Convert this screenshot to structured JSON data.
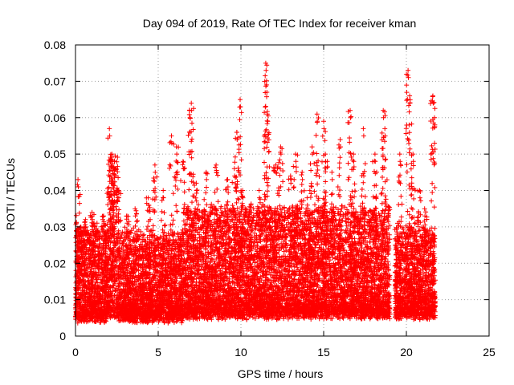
{
  "chart_data": {
    "type": "scatter",
    "title": "Day 094 of 2019, Rate Of TEC Index for receiver kman",
    "xlabel": "GPS time / hours",
    "ylabel": "ROTI / TECUs",
    "xlim": [
      0,
      25
    ],
    "ylim": [
      0,
      0.08
    ],
    "x_ticks": [
      0,
      5,
      10,
      15,
      20,
      25
    ],
    "x_tick_labels": [
      "0",
      "5",
      "10",
      "15",
      "20",
      "25"
    ],
    "y_ticks": [
      0,
      0.01,
      0.02,
      0.03,
      0.04,
      0.05,
      0.06,
      0.07,
      0.08
    ],
    "y_tick_labels": [
      "0",
      "0.01",
      "0.02",
      "0.03",
      "0.04",
      "0.05",
      "0.06",
      "0.07",
      "0.08"
    ],
    "grid": true,
    "marker": "+",
    "series": [
      {
        "name": "ROTI",
        "color": "#ff0000",
        "marker": "plus",
        "data_gap_hours": [
          19.0,
          19.3
        ],
        "data_end_hour": 21.75,
        "bands": [
          {
            "x": [
              0.0,
              2.0
            ],
            "base_range": [
              0.005,
              0.03
            ]
          },
          {
            "x": [
              2.0,
              2.6
            ],
            "base_range": [
              0.006,
              0.05
            ]
          },
          {
            "x": [
              2.6,
              6.5
            ],
            "base_range": [
              0.005,
              0.028
            ]
          },
          {
            "x": [
              6.5,
              10.5
            ],
            "base_range": [
              0.006,
              0.035
            ]
          },
          {
            "x": [
              10.5,
              19.0
            ],
            "base_range": [
              0.006,
              0.035
            ]
          },
          {
            "x": [
              19.3,
              21.75
            ],
            "base_range": [
              0.006,
              0.03
            ]
          }
        ],
        "peaks": [
          [
            0.05,
            0.031
          ],
          [
            0.15,
            0.043
          ],
          [
            0.3,
            0.03
          ],
          [
            0.6,
            0.032
          ],
          [
            1.0,
            0.034
          ],
          [
            1.3,
            0.031
          ],
          [
            1.7,
            0.033
          ],
          [
            2.05,
            0.057
          ],
          [
            2.2,
            0.05
          ],
          [
            2.35,
            0.048
          ],
          [
            2.6,
            0.04
          ],
          [
            3.1,
            0.033
          ],
          [
            3.6,
            0.035
          ],
          [
            4.4,
            0.038
          ],
          [
            4.8,
            0.047
          ],
          [
            5.3,
            0.04
          ],
          [
            5.8,
            0.055
          ],
          [
            6.1,
            0.052
          ],
          [
            6.5,
            0.048
          ],
          [
            6.9,
            0.062
          ],
          [
            7.0,
            0.064
          ],
          [
            7.3,
            0.042
          ],
          [
            7.9,
            0.045
          ],
          [
            8.5,
            0.047
          ],
          [
            9.2,
            0.043
          ],
          [
            9.6,
            0.046
          ],
          [
            9.75,
            0.056
          ],
          [
            9.95,
            0.065
          ],
          [
            10.1,
            0.04
          ],
          [
            10.6,
            0.036
          ],
          [
            11.1,
            0.04
          ],
          [
            11.5,
            0.075
          ],
          [
            11.55,
            0.069
          ],
          [
            11.6,
            0.061
          ],
          [
            12.1,
            0.047
          ],
          [
            12.4,
            0.052
          ],
          [
            13.0,
            0.044
          ],
          [
            13.3,
            0.05
          ],
          [
            13.7,
            0.045
          ],
          [
            14.0,
            0.038
          ],
          [
            14.3,
            0.052
          ],
          [
            14.6,
            0.061
          ],
          [
            15.0,
            0.059
          ],
          [
            15.1,
            0.05
          ],
          [
            15.5,
            0.045
          ],
          [
            16.0,
            0.054
          ],
          [
            16.6,
            0.062
          ],
          [
            16.8,
            0.05
          ],
          [
            17.4,
            0.057
          ],
          [
            18.1,
            0.05
          ],
          [
            18.6,
            0.062
          ],
          [
            18.7,
            0.057
          ],
          [
            19.6,
            0.05
          ],
          [
            20.1,
            0.073
          ],
          [
            20.2,
            0.066
          ],
          [
            20.4,
            0.05
          ],
          [
            20.8,
            0.04
          ],
          [
            21.1,
            0.035
          ],
          [
            21.6,
            0.066
          ],
          [
            21.7,
            0.06
          ]
        ]
      }
    ]
  }
}
